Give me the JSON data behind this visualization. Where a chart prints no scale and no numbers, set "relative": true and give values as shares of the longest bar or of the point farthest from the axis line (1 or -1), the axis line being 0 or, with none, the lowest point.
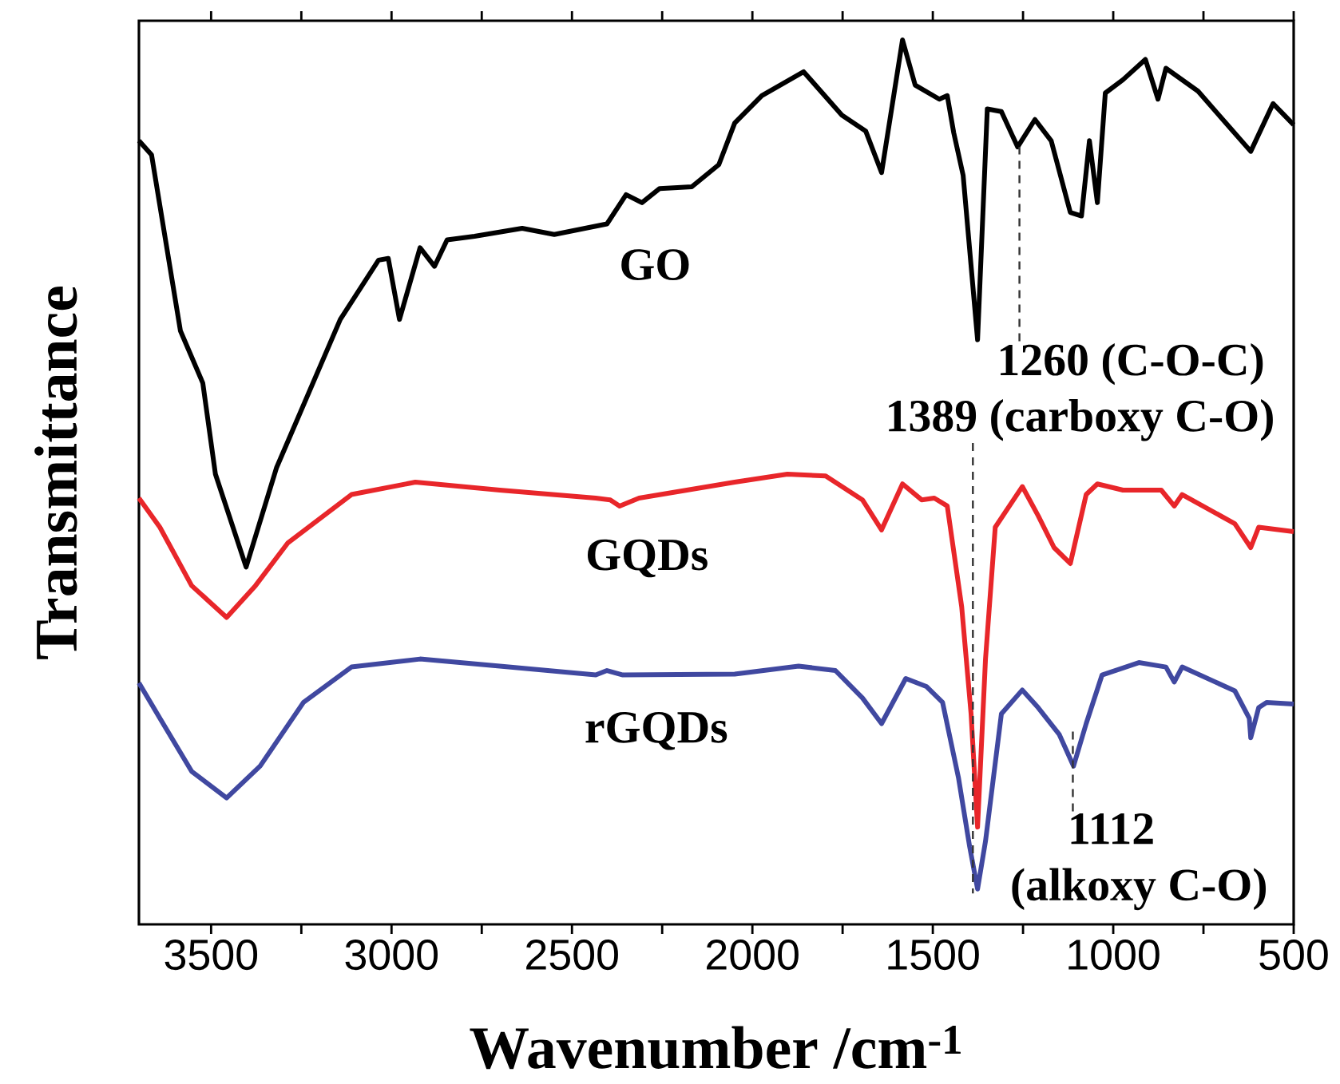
{
  "chart_data": {
    "type": "line",
    "relative": true,
    "xlabel": "Wavenumber /cm$^{-1}$",
    "ylabel": "Transmittance",
    "xlim": [
      3700,
      500
    ],
    "xticks": [
      3500,
      {
        "value": 3250,
        "label": null
      },
      3000,
      {
        "value": 2750,
        "label": null
      },
      2500,
      {
        "value": 2250,
        "label": null
      },
      2000,
      {
        "value": 1750,
        "label": null
      },
      1500,
      {
        "value": 1250,
        "label": null
      },
      1000,
      {
        "value": 750,
        "label": null
      },
      500
    ],
    "series": [
      {
        "name": "GO",
        "color": "#000000",
        "x": [
          3700,
          3665,
          3585,
          3523,
          3488,
          3403,
          3319,
          3142,
          3036,
          3009,
          2978,
          2921,
          2881,
          2846,
          2770,
          2638,
          2549,
          2403,
          2350,
          2306,
          2257,
          2168,
          2093,
          2049,
          1974,
          1858,
          1752,
          1686,
          1642,
          1584,
          1549,
          1482,
          1460,
          1442,
          1416,
          1376,
          1349,
          1310,
          1265,
          1217,
          1172,
          1119,
          1088,
          1066,
          1044,
          1022,
          973,
          911,
          876,
          854,
          765,
          677,
          619,
          557,
          500
        ],
        "values": [
          0.886,
          0.87,
          0.671,
          0.612,
          0.509,
          0.404,
          0.516,
          0.684,
          0.751,
          0.753,
          0.684,
          0.765,
          0.744,
          0.774,
          0.778,
          0.787,
          0.78,
          0.792,
          0.825,
          0.816,
          0.832,
          0.834,
          0.859,
          0.906,
          0.937,
          0.964,
          0.915,
          0.897,
          0.85,
          1.0,
          0.949,
          0.933,
          0.937,
          0.895,
          0.847,
          0.661,
          0.922,
          0.919,
          0.879,
          0.91,
          0.886,
          0.805,
          0.801,
          0.886,
          0.816,
          0.94,
          0.955,
          0.978,
          0.933,
          0.968,
          0.942,
          0.901,
          0.874,
          0.928,
          0.904
        ]
      },
      {
        "name": "GQDs",
        "color": "#e8262a",
        "x": [
          3700,
          3642,
          3554,
          3457,
          3377,
          3288,
          3111,
          2934,
          2700,
          2434,
          2394,
          2368,
          2314,
          2049,
          1903,
          1797,
          1695,
          1642,
          1584,
          1531,
          1496,
          1460,
          1420,
          1394,
          1376,
          1354,
          1327,
          1252,
          1208,
          1164,
          1119,
          1075,
          1044,
          973,
          867,
          831,
          809,
          663,
          619,
          597,
          500
        ],
        "values": [
          0.482,
          0.449,
          0.383,
          0.347,
          0.383,
          0.431,
          0.486,
          0.5,
          0.491,
          0.482,
          0.48,
          0.473,
          0.482,
          0.5,
          0.509,
          0.507,
          0.48,
          0.446,
          0.498,
          0.48,
          0.482,
          0.473,
          0.359,
          0.238,
          0.11,
          0.3,
          0.449,
          0.495,
          0.462,
          0.426,
          0.408,
          0.486,
          0.498,
          0.491,
          0.491,
          0.473,
          0.486,
          0.453,
          0.426,
          0.449,
          0.444
        ]
      },
      {
        "name": "rGQDs",
        "color": "#4048a0",
        "x": [
          3700,
          3642,
          3554,
          3457,
          3364,
          3244,
          3111,
          2921,
          2700,
          2434,
          2403,
          2359,
          2049,
          1872,
          1770,
          1695,
          1642,
          1575,
          1518,
          1473,
          1429,
          1398,
          1376,
          1354,
          1310,
          1252,
          1208,
          1150,
          1110,
          1075,
          1031,
          929,
          854,
          831,
          809,
          663,
          623,
          619,
          597,
          575,
          500
        ],
        "values": [
          0.273,
          0.233,
          0.173,
          0.143,
          0.179,
          0.251,
          0.291,
          0.3,
          0.292,
          0.282,
          0.287,
          0.282,
          0.283,
          0.292,
          0.287,
          0.256,
          0.227,
          0.278,
          0.269,
          0.251,
          0.166,
          0.088,
          0.04,
          0.094,
          0.238,
          0.265,
          0.245,
          0.215,
          0.179,
          0.227,
          0.282,
          0.296,
          0.291,
          0.274,
          0.291,
          0.264,
          0.233,
          0.211,
          0.245,
          0.251,
          0.249
        ]
      }
    ],
    "annotations": [
      {
        "text": "1260 (C-O-C)",
        "x": 1260,
        "y": 0.879
      },
      {
        "text": "1389 (carboxy C-O)",
        "x": 1389,
        "y": 0.035
      },
      {
        "text": "1112",
        "x": 1112,
        "y": 0.179
      },
      "(alkoxy C-O)"
    ]
  }
}
